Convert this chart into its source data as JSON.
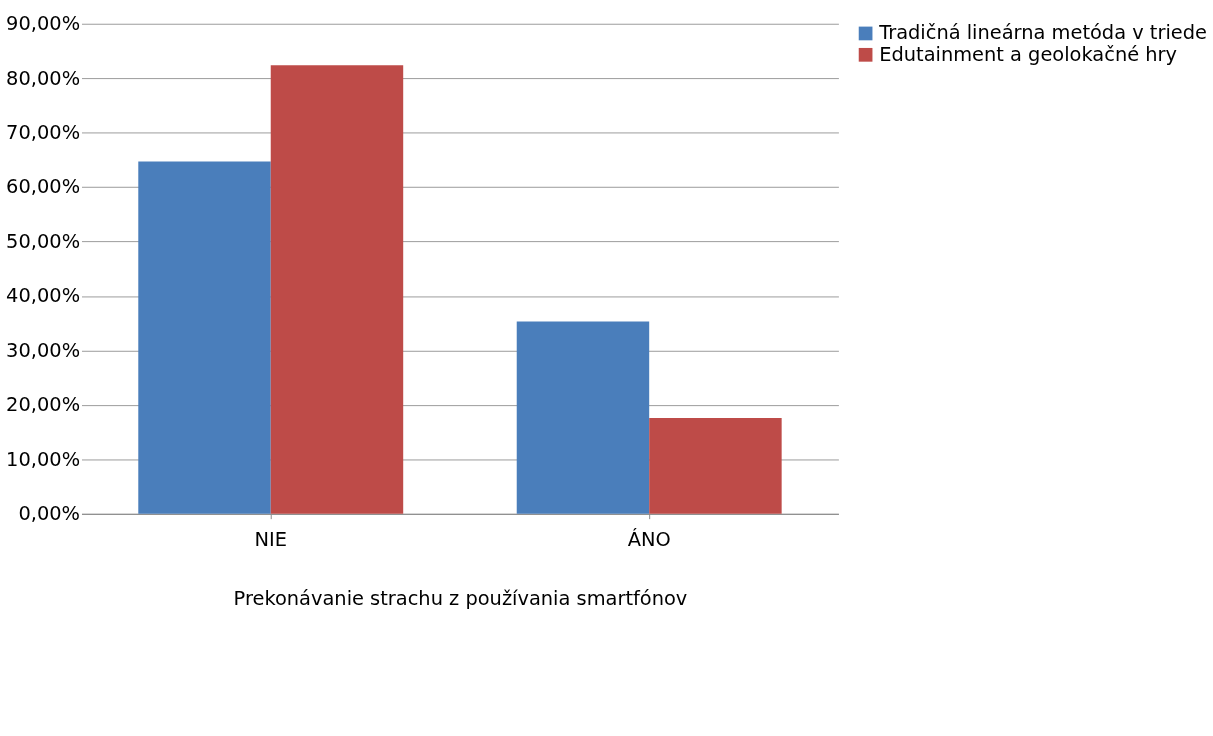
{
  "chart_data": {
    "type": "bar",
    "categories": [
      "NIE",
      "ÁNO"
    ],
    "xlabel": "Prekonávanie strachu z používania smartfónov",
    "series": [
      {
        "name": "Tradičná lineárna metóda v triede",
        "color": "#4a7ebb",
        "values": [
          64.7,
          35.3
        ]
      },
      {
        "name": "Edutainment a geolokačné hry",
        "color": "#be4b48",
        "values": [
          82.4,
          17.6
        ]
      }
    ],
    "ylim": [
      0,
      90
    ],
    "yticks": [
      {
        "value": 0,
        "label": "0,00%"
      },
      {
        "value": 10,
        "label": "10,00%"
      },
      {
        "value": 20,
        "label": "20,00%"
      },
      {
        "value": 30,
        "label": "30,00%"
      },
      {
        "value": 40,
        "label": "40,00%"
      },
      {
        "value": 50,
        "label": "50,00%"
      },
      {
        "value": 60,
        "label": "60,00%"
      },
      {
        "value": 70,
        "label": "70,00%"
      },
      {
        "value": 80,
        "label": "80,00%"
      },
      {
        "value": 90,
        "label": "90,00%"
      }
    ],
    "grid": "y",
    "legend": "right"
  }
}
